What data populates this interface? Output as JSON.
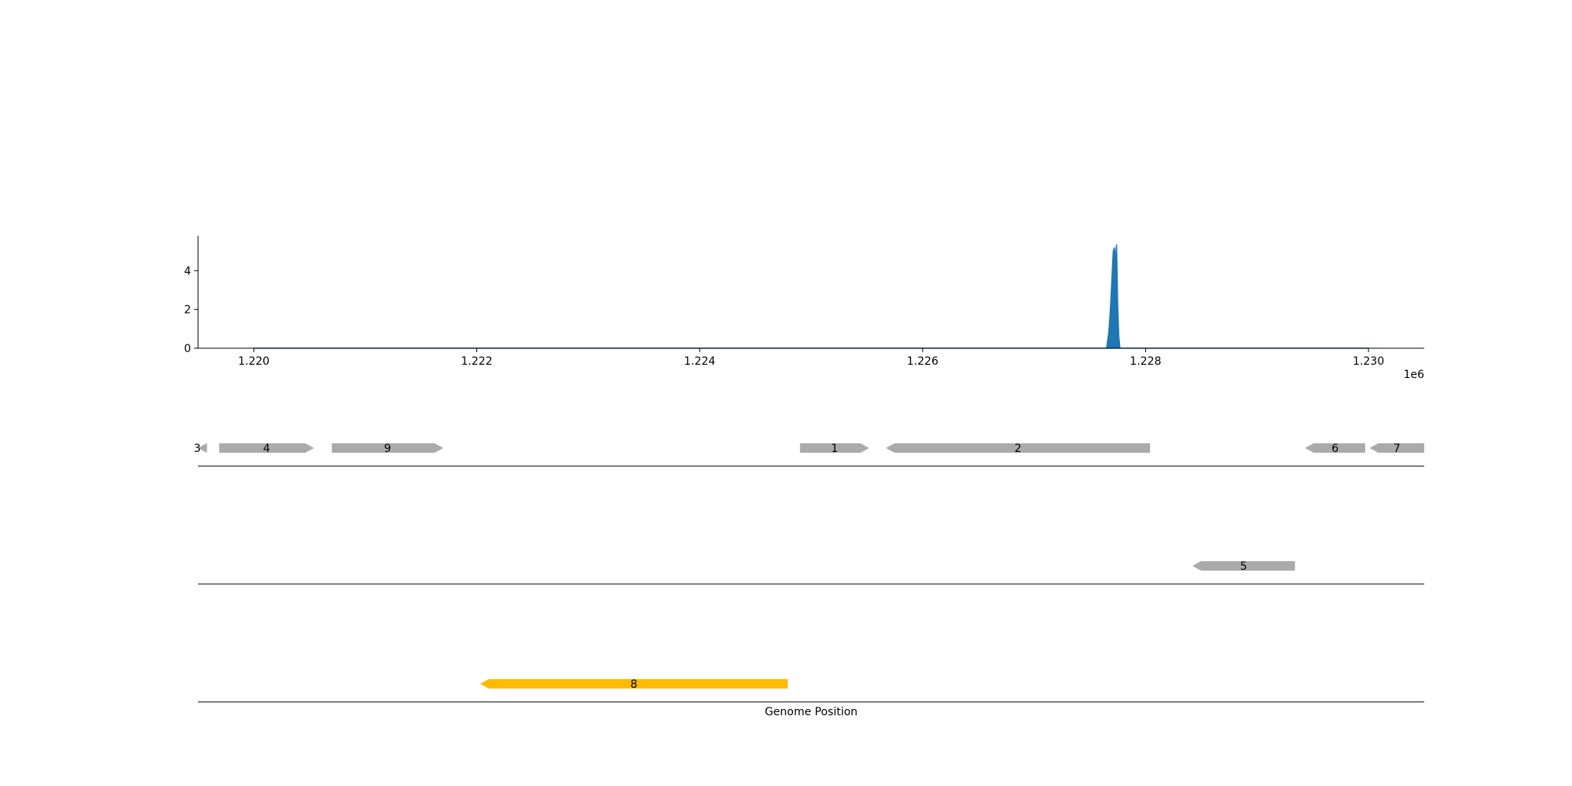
{
  "chart_data": [
    {
      "type": "area",
      "title": "",
      "xlabel": "",
      "ylabel": "",
      "x_scale_label": "1e6",
      "xlim": [
        1219500,
        1230500
      ],
      "ylim": [
        0,
        5.8
      ],
      "grid": false,
      "x_ticks": [
        {
          "value": 1220000,
          "label": "1.220"
        },
        {
          "value": 1222000,
          "label": "1.222"
        },
        {
          "value": 1224000,
          "label": "1.224"
        },
        {
          "value": 1226000,
          "label": "1.226"
        },
        {
          "value": 1228000,
          "label": "1.228"
        },
        {
          "value": 1230000,
          "label": "1.230"
        }
      ],
      "y_ticks": [
        {
          "value": 0,
          "label": "0"
        },
        {
          "value": 2,
          "label": "2"
        },
        {
          "value": 4,
          "label": "4"
        }
      ],
      "color": "#1f77b4",
      "series": [
        {
          "x": [
            1220000,
            1227650,
            1227670,
            1227680,
            1227690,
            1227700,
            1227710,
            1227720,
            1227730,
            1227740,
            1227750,
            1227760,
            1227770,
            1227780,
            1230000
          ],
          "y": [
            0,
            0,
            0.8,
            1.6,
            2.6,
            3.8,
            5.0,
            5.2,
            4.5,
            5.35,
            2.2,
            0.6,
            0,
            0,
            0
          ]
        }
      ]
    },
    {
      "type": "gene-track",
      "xlabel": "Genome Position",
      "xlim": [
        1219500,
        1230500
      ],
      "default_color": "#aaaaaa",
      "highlight_color": "#ffbb00",
      "genes": [
        {
          "label": "3",
          "start": 1219400,
          "end": 1219580,
          "strand": "-",
          "row": 0,
          "color": "#aaaaaa"
        },
        {
          "label": "4",
          "start": 1219690,
          "end": 1220540,
          "strand": "+",
          "row": 0,
          "color": "#aaaaaa"
        },
        {
          "label": "9",
          "start": 1220700,
          "end": 1221700,
          "strand": "+",
          "row": 0,
          "color": "#aaaaaa"
        },
        {
          "label": "1",
          "start": 1224900,
          "end": 1225520,
          "strand": "+",
          "row": 0,
          "color": "#aaaaaa"
        },
        {
          "label": "2",
          "start": 1225670,
          "end": 1228040,
          "strand": "-",
          "row": 0,
          "color": "#aaaaaa"
        },
        {
          "label": "6",
          "start": 1229430,
          "end": 1229970,
          "strand": "-",
          "row": 0,
          "color": "#aaaaaa"
        },
        {
          "label": "7",
          "start": 1230010,
          "end": 1230500,
          "strand": "-",
          "row": 0,
          "color": "#aaaaaa"
        },
        {
          "label": "5",
          "start": 1228420,
          "end": 1229340,
          "strand": "-",
          "row": 1,
          "color": "#aaaaaa"
        },
        {
          "label": "8",
          "start": 1222030,
          "end": 1224790,
          "strand": "-",
          "row": 2,
          "color": "#ffbb00"
        }
      ]
    }
  ]
}
